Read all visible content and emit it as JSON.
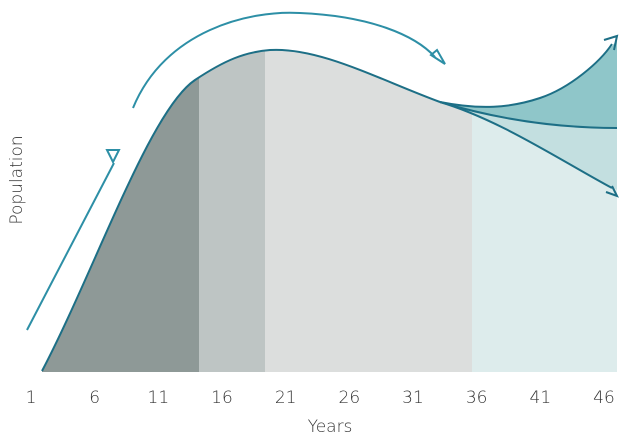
{
  "chart_data": {
    "type": "area",
    "xlabel": "Years",
    "ylabel": "Population",
    "x_ticks": [
      "1",
      "6",
      "11",
      "16",
      "21",
      "26",
      "31",
      "36",
      "41",
      "46"
    ],
    "xlim": [
      1,
      46
    ],
    "phases": [
      {
        "from": 1,
        "to": 15.6
      },
      {
        "from": 15.6,
        "to": 20.6
      },
      {
        "from": 20.6,
        "to": 36
      },
      {
        "from": 36,
        "to": 46
      }
    ],
    "scenarios_after": 34,
    "scenarios": [
      "growth",
      "stable",
      "decline"
    ]
  },
  "colors": {
    "phase1": "#8e9997",
    "phase2": "#bec5c4",
    "phase3": "#dcdedd",
    "phase4": "#ddecec",
    "growth_fill": "#8fc6c9",
    "stable_fill": "#c3dfe0",
    "curve": "#1d6f86",
    "arrow": "#2d8fa6"
  }
}
